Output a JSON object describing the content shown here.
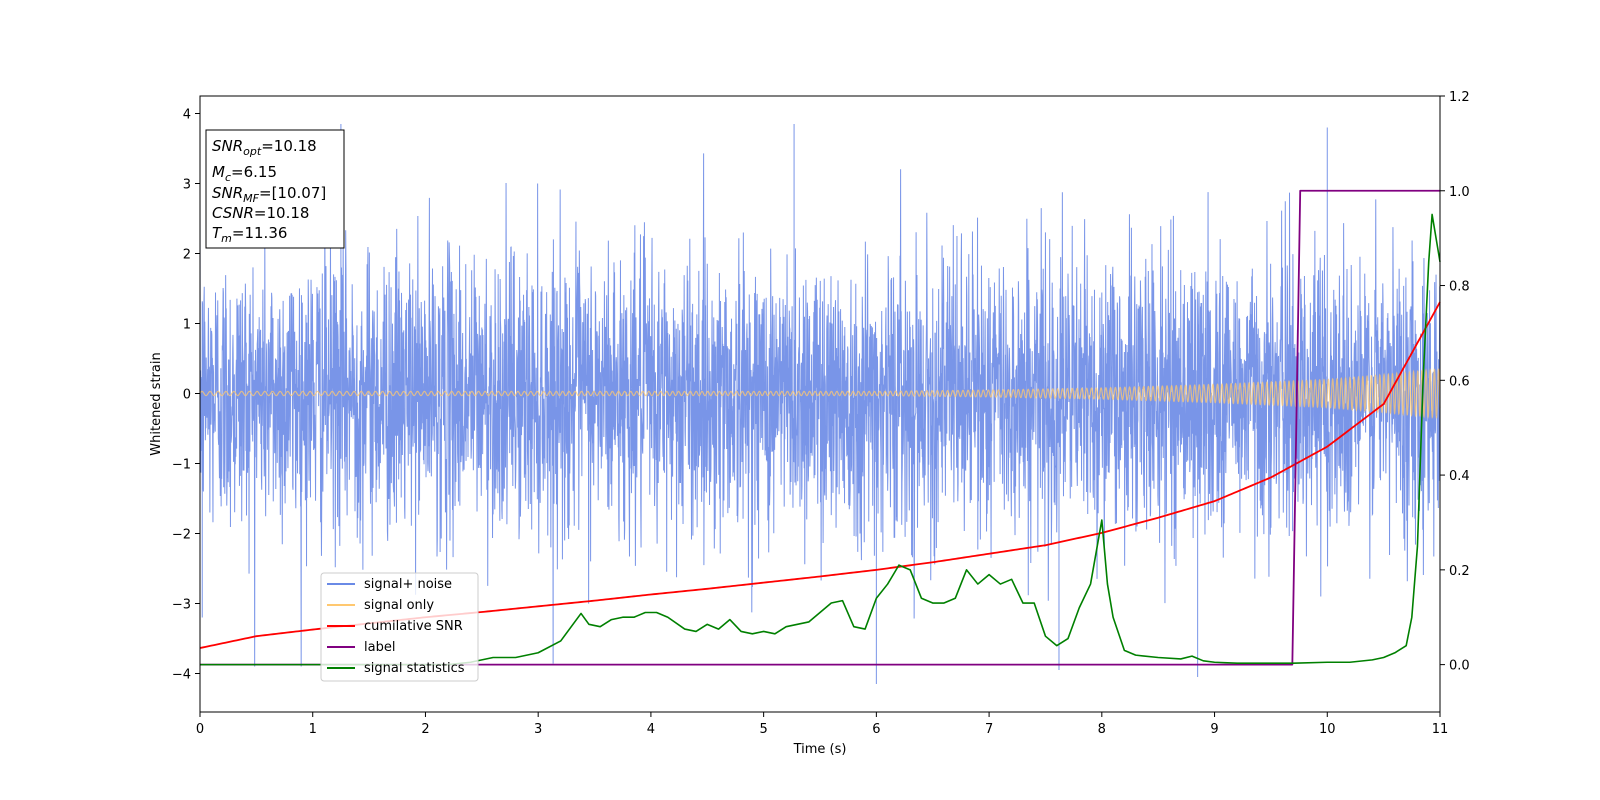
{
  "chart_data": {
    "type": "line",
    "xlabel": "Time (s)",
    "ylabel": "Whitened strain",
    "xlim": [
      0,
      11
    ],
    "ylim_left": [
      -4.55,
      4.25
    ],
    "ylim_right": [
      -0.1,
      1.2
    ],
    "x_ticks": [
      0,
      1,
      2,
      3,
      4,
      5,
      6,
      7,
      8,
      9,
      10,
      11
    ],
    "y_ticks_left": [
      -4,
      -3,
      -2,
      -1,
      0,
      1,
      2,
      3,
      4
    ],
    "y_ticks_right": [
      0.0,
      0.2,
      0.4,
      0.6,
      0.8,
      1.0,
      1.2
    ],
    "annotation": {
      "lines": [
        {
          "base": "SNR",
          "sub": "opt",
          "rest": "=10.18"
        },
        {
          "base": "M",
          "sub": "c",
          "rest": "=6.15"
        },
        {
          "base": "SNR",
          "sub": "MF",
          "rest": "=[10.07]"
        },
        {
          "base": "CSNR",
          "sub": "",
          "rest": "=10.18"
        },
        {
          "base": "T",
          "sub": "m",
          "rest": "=11.36"
        }
      ]
    },
    "legend": {
      "placement": "lower-left",
      "entries": [
        {
          "label": "signal+ noise",
          "color": "#6a8ae6"
        },
        {
          "label": "signal only",
          "color": "#ffc870"
        },
        {
          "label": "cumilative SNR",
          "color": "#ff0000"
        },
        {
          "label": "label",
          "color": "#800080"
        },
        {
          "label": "signal statistics",
          "color": "#008000"
        }
      ]
    },
    "series": [
      {
        "name": "signal+ noise",
        "axis": "left",
        "color": "#6a8ae6",
        "description_values": {
          "noise_std": 1.0,
          "extreme_peaks": [
            [
              1.25,
              3.85
            ],
            [
              5.27,
              3.85
            ],
            [
              10.0,
              3.8
            ],
            [
              6.0,
              -4.15
            ],
            [
              7.62,
              -3.95
            ],
            [
              8.85,
              -4.05
            ],
            [
              0.02,
              -3.2
            ]
          ]
        }
      },
      {
        "name": "signal only",
        "axis": "left",
        "color": "#ffc870",
        "amplitude_points": {
          "x": [
            0,
            6,
            7,
            8,
            9,
            10,
            10.5,
            11
          ],
          "y": [
            0.03,
            0.03,
            0.05,
            0.08,
            0.13,
            0.2,
            0.27,
            0.35
          ]
        }
      },
      {
        "name": "cumilative SNR",
        "axis": "right",
        "color": "#ff0000",
        "x": [
          0,
          0.5,
          1,
          1.5,
          2,
          2.5,
          3,
          3.5,
          4,
          4.5,
          5,
          5.5,
          6,
          6.5,
          7,
          7.5,
          8,
          8.5,
          9,
          9.5,
          10,
          10.5,
          11
        ],
        "y": [
          0.035,
          0.06,
          0.074,
          0.087,
          0.1,
          0.111,
          0.123,
          0.135,
          0.148,
          0.16,
          0.173,
          0.186,
          0.2,
          0.216,
          0.234,
          0.252,
          0.278,
          0.31,
          0.345,
          0.395,
          0.46,
          0.55,
          0.765
        ]
      },
      {
        "name": "label",
        "axis": "right",
        "color": "#800080",
        "x": [
          0,
          9.69,
          9.76,
          11
        ],
        "y": [
          0.0,
          0.0,
          1.0,
          1.0
        ]
      },
      {
        "name": "signal statistics",
        "axis": "right",
        "color": "#008000",
        "x": [
          0,
          2.2,
          2.4,
          2.6,
          2.8,
          3.0,
          3.2,
          3.38,
          3.45,
          3.55,
          3.65,
          3.75,
          3.85,
          3.95,
          4.05,
          4.15,
          4.3,
          4.4,
          4.5,
          4.6,
          4.7,
          4.8,
          4.9,
          5.0,
          5.1,
          5.2,
          5.3,
          5.4,
          5.5,
          5.6,
          5.7,
          5.8,
          5.9,
          6.0,
          6.1,
          6.2,
          6.3,
          6.4,
          6.5,
          6.6,
          6.7,
          6.8,
          6.9,
          7.0,
          7.1,
          7.2,
          7.3,
          7.4,
          7.5,
          7.6,
          7.7,
          7.8,
          7.9,
          8.0,
          8.05,
          8.1,
          8.2,
          8.3,
          8.5,
          8.7,
          8.8,
          8.9,
          9.0,
          9.2,
          9.5,
          9.7,
          10.0,
          10.2,
          10.4,
          10.5,
          10.6,
          10.7,
          10.75,
          10.8,
          10.85,
          10.9,
          10.93,
          11.0
        ],
        "y": [
          0.0,
          0.0,
          0.005,
          0.015,
          0.015,
          0.025,
          0.05,
          0.108,
          0.085,
          0.08,
          0.095,
          0.1,
          0.1,
          0.11,
          0.11,
          0.1,
          0.075,
          0.07,
          0.085,
          0.075,
          0.095,
          0.07,
          0.065,
          0.07,
          0.065,
          0.08,
          0.085,
          0.09,
          0.11,
          0.13,
          0.135,
          0.08,
          0.075,
          0.14,
          0.17,
          0.21,
          0.2,
          0.14,
          0.13,
          0.13,
          0.14,
          0.2,
          0.17,
          0.19,
          0.17,
          0.18,
          0.13,
          0.13,
          0.06,
          0.04,
          0.055,
          0.12,
          0.17,
          0.305,
          0.17,
          0.1,
          0.03,
          0.02,
          0.015,
          0.012,
          0.018,
          0.008,
          0.005,
          0.003,
          0.003,
          0.003,
          0.005,
          0.005,
          0.01,
          0.015,
          0.025,
          0.04,
          0.1,
          0.25,
          0.6,
          0.85,
          0.95,
          0.85
        ]
      }
    ]
  }
}
